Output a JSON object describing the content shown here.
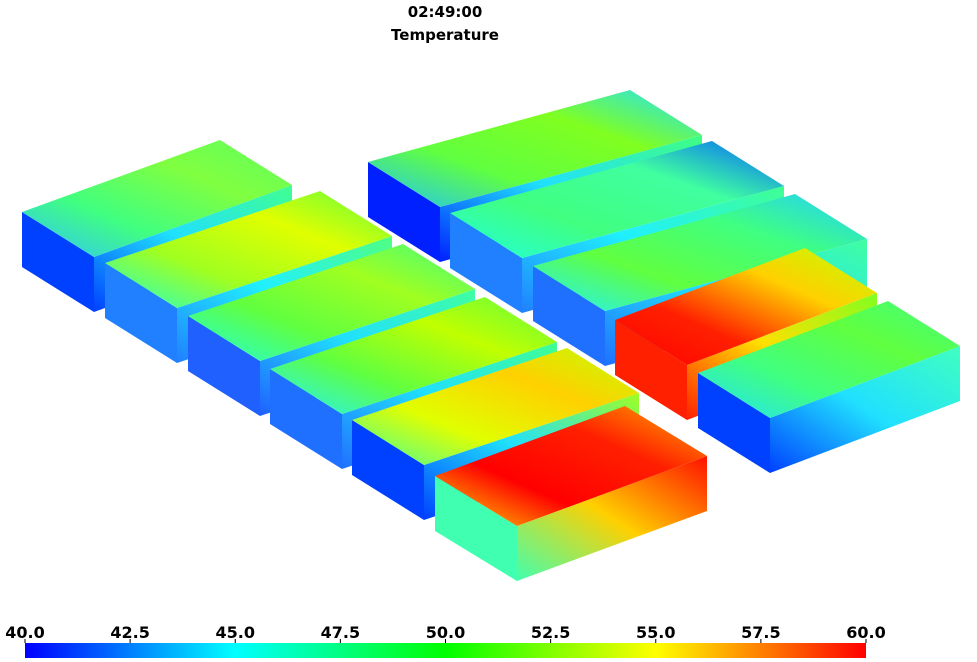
{
  "header": {
    "time": "02:49:00",
    "title": "Temperature"
  },
  "colorbar": {
    "lim": [
      40,
      60
    ],
    "ticks": [
      {
        "value": 40,
        "label": "40.0"
      },
      {
        "value": 42.5,
        "label": "42.5"
      },
      {
        "value": 45,
        "label": "45.0"
      },
      {
        "value": 47.5,
        "label": "47.5"
      },
      {
        "value": 50,
        "label": "50.0"
      },
      {
        "value": 52.5,
        "label": "52.5"
      },
      {
        "value": 55,
        "label": "55.0"
      },
      {
        "value": 57.5,
        "label": "57.5"
      },
      {
        "value": 60,
        "label": "60.0"
      }
    ]
  }
}
